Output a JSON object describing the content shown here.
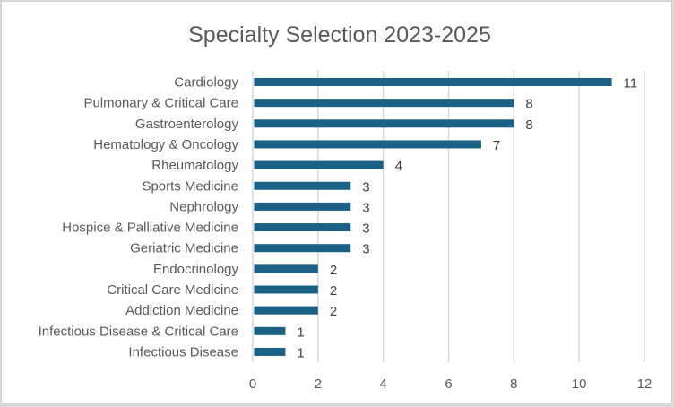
{
  "chart_data": {
    "type": "bar",
    "orientation": "horizontal",
    "title": "Specialty Selection 2023-2025",
    "xlabel": "",
    "ylabel": "",
    "categories": [
      "Cardiology",
      "Pulmonary & Critical Care",
      "Gastroenterology",
      "Hematology & Oncology",
      "Rheumatology",
      "Sports Medicine",
      "Nephrology",
      "Hospice & Palliative Medicine",
      "Geriatric Medicine",
      "Endocrinology",
      "Critical Care Medicine",
      "Addiction Medicine",
      "Infectious Disease & Critical Care",
      "Infectious Disease"
    ],
    "values": [
      11,
      8,
      8,
      7,
      4,
      3,
      3,
      3,
      3,
      2,
      2,
      2,
      1,
      1
    ],
    "xlim": [
      0,
      12
    ],
    "xticks": [
      "0",
      "2",
      "4",
      "6",
      "8",
      "10",
      "12"
    ],
    "grid": true,
    "data_labels": true,
    "legend": "none",
    "bar_color": "#1a6185",
    "grid_color": "#d9d9d9"
  }
}
